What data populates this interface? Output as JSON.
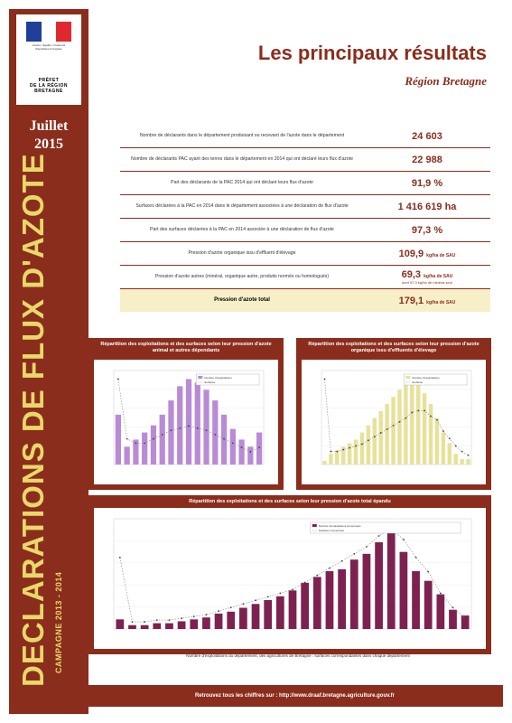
{
  "colors": {
    "brand": "#8b2d1c",
    "yellow": "#e8d86a",
    "purple": "#b98bd6",
    "khaki": "#e6e29a",
    "maroon": "#7d2250"
  },
  "logo": {
    "motto": "Liberté • Égalité • Fraternité\nRépublique Française",
    "text": "PRÉFET\nDE LA RÉGION\nBRETAGNE"
  },
  "date": "Juillet\n2015",
  "vertical_title": "DECLARATIONS DE FLUX D'AZOTE",
  "campaign": "CAMPAGNE 2013 - 2014",
  "title": "Les principaux résultats",
  "region": "Région Bretagne",
  "results": [
    {
      "label": "Nombre de déclarants dans le département produisant ou recevant de l'azote dans le département",
      "value": "24 603",
      "unit": ""
    },
    {
      "label": "Nombre de déclarants PAC ayant des terres dans le département en 2014 qui ont déclaré leurs flux d'azote",
      "value": "22 988",
      "unit": ""
    },
    {
      "label": "Part des déclarants de la PAC 2014 qui ont déclaré leurs flux d'azote",
      "value": "91,9 %",
      "unit": ""
    },
    {
      "label": "Surfaces déclarées à la PAC en 2014 dans le département associées à une déclaration de flux d'azote",
      "value": "1 416 619 ha",
      "unit": ""
    },
    {
      "label": "Part des surfaces déclarées à la PAC en 2014 associée à une déclaration de flux d'azote",
      "value": "97,3 %",
      "unit": ""
    },
    {
      "label": "Pression d'azote organique issu d'effluent d'élevage",
      "value": "109,9",
      "unit": "kg/ha de SAU"
    },
    {
      "label": "Pression d'azote autres (minéral, organique autre, produits normés ou homologués)",
      "value": "69,3",
      "unit": "kg/ha de SAU",
      "sub": "dont 57,3 kg/ha de minéral seul"
    }
  ],
  "total": {
    "label": "Pression d'azote total",
    "value": "179,1",
    "unit": "kg/ha de SAU"
  },
  "charts": {
    "c1": {
      "title": "Répartition des exploitations et des surfaces selon leur pression d'azote animal et autres dépendants",
      "legend": [
        "Nombre d'exploitations",
        "Surfaces"
      ]
    },
    "c2": {
      "title": "Répartition des exploitations et des surfaces selon leur pression d'azote organique issu d'effluents d'élevage",
      "legend": [
        "Nombre d'exploitations",
        "Surfaces"
      ]
    },
    "c3": {
      "title": "Répartition des exploitations et des surfaces selon leur pression d'azote total épandu",
      "legend": [
        "Nombre d'exploitations concernées",
        "Surfaces concernées"
      ]
    }
  },
  "chart_data": [
    {
      "type": "bar",
      "values": [
        1400,
        500,
        700,
        900,
        1100,
        1400,
        1800,
        2200,
        2400,
        2300,
        2100,
        1800,
        1400,
        1000,
        700,
        500,
        900
      ],
      "line": [
        2000,
        600,
        500,
        500,
        600,
        700,
        800,
        850,
        900,
        850,
        800,
        700,
        600,
        500,
        400,
        300,
        400
      ]
    },
    {
      "type": "bar",
      "values": [
        100,
        300,
        400,
        500,
        600,
        700,
        900,
        1100,
        1300,
        1500,
        1700,
        1900,
        2100,
        2300,
        2400,
        2300,
        2000,
        1700,
        1300,
        900,
        600,
        300,
        150,
        150
      ],
      "line": [
        2300,
        350,
        350,
        400,
        450,
        500,
        550,
        650,
        750,
        850,
        950,
        1050,
        1150,
        1250,
        1400,
        1450,
        1450,
        1300,
        1200,
        900,
        700,
        500,
        350,
        250
      ]
    },
    {
      "type": "bar",
      "values": [
        500,
        200,
        200,
        300,
        300,
        400,
        500,
        600,
        800,
        900,
        1100,
        1300,
        1500,
        1700,
        2000,
        2400,
        2700,
        3000,
        3100,
        3600,
        3900,
        4500,
        5200,
        4000,
        3000,
        2500,
        1800,
        1000,
        700
      ],
      "line": [
        2000,
        200,
        200,
        250,
        250,
        300,
        350,
        400,
        500,
        600,
        700,
        800,
        900,
        1000,
        1100,
        1300,
        1500,
        1700,
        1900,
        2100,
        2300,
        2600,
        2800,
        2500,
        2000,
        1600,
        1000,
        600,
        300
      ]
    }
  ],
  "footer_note": "Nombre d'exploitations du département, des agricultures de Bretagne : surfaces correspondantes dans chaque département",
  "footer": "Retrouvez tous les chiffres sur : http://www.draaf.bretagne.agriculture.gouv.fr"
}
